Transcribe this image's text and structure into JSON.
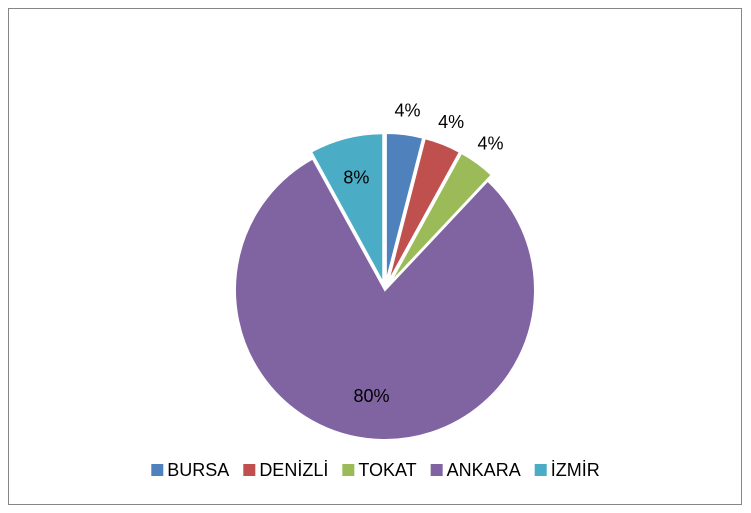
{
  "chart_data": {
    "type": "pie",
    "categories": [
      "BURSA",
      "DENİZLİ",
      "TOKAT",
      "ANKARA",
      "İZMİR"
    ],
    "values": [
      4,
      4,
      4,
      80,
      8
    ],
    "value_labels": [
      "4%",
      "4%",
      "4%",
      "80%",
      "8%"
    ],
    "colors": [
      "#4f81bd",
      "#c0504d",
      "#9bbb59",
      "#8064a2",
      "#4bacc6"
    ],
    "legend": "bottom"
  }
}
